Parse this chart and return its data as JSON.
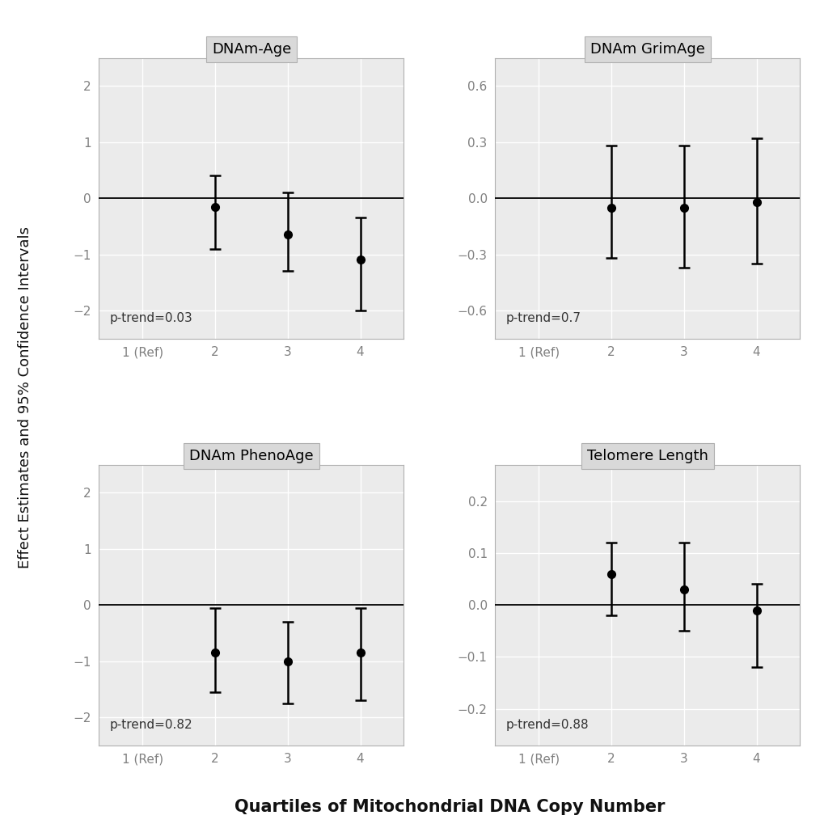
{
  "panels": [
    {
      "title": "DNAm-Age",
      "ylim": [
        -2.5,
        2.5
      ],
      "yticks": [
        -2,
        -1,
        0,
        1,
        2
      ],
      "p_trend": "p-trend=0.03",
      "estimates": [
        null,
        -0.15,
        -0.65,
        -1.1
      ],
      "ci_lower": [
        null,
        -0.9,
        -1.3,
        -2.0
      ],
      "ci_upper": [
        null,
        0.4,
        0.1,
        -0.35
      ]
    },
    {
      "title": "DNAm GrimAge",
      "ylim": [
        -0.75,
        0.75
      ],
      "yticks": [
        -0.6,
        -0.3,
        0.0,
        0.3,
        0.6
      ],
      "p_trend": "p-trend=0.7",
      "estimates": [
        null,
        -0.05,
        -0.05,
        -0.02
      ],
      "ci_lower": [
        null,
        -0.32,
        -0.37,
        -0.35
      ],
      "ci_upper": [
        null,
        0.28,
        0.28,
        0.32
      ]
    },
    {
      "title": "DNAm PhenoAge",
      "ylim": [
        -2.5,
        2.5
      ],
      "yticks": [
        -2,
        -1,
        0,
        1,
        2
      ],
      "p_trend": "p-trend=0.82",
      "estimates": [
        null,
        -0.85,
        -1.0,
        -0.85
      ],
      "ci_lower": [
        null,
        -1.55,
        -1.75,
        -1.7
      ],
      "ci_upper": [
        null,
        -0.05,
        -0.3,
        -0.05
      ]
    },
    {
      "title": "Telomere Length",
      "ylim": [
        -0.27,
        0.27
      ],
      "yticks": [
        -0.2,
        -0.1,
        0.0,
        0.1,
        0.2
      ],
      "p_trend": "p-trend=0.88",
      "estimates": [
        null,
        0.06,
        0.03,
        -0.01
      ],
      "ci_lower": [
        null,
        -0.02,
        -0.05,
        -0.12
      ],
      "ci_upper": [
        null,
        0.12,
        0.12,
        0.04
      ]
    }
  ],
  "x_positions": [
    1,
    2,
    3,
    4
  ],
  "x_ticklabels": [
    "1 (Ref)",
    "2",
    "3",
    "4"
  ],
  "xlabel": "Quartiles of Mitochondrial DNA Copy Number",
  "ylabel": "Effect Estimates and 95% Confidence Intervals",
  "background_color": "#ffffff",
  "panel_bg_color": "#ebebeb",
  "title_bg_color": "#d9d9d9",
  "grid_color": "#ffffff",
  "zero_line_color": "#000000",
  "point_color": "#000000",
  "ci_color": "#000000",
  "tick_color": "#808080",
  "spine_color": "#b0b0b0",
  "point_size": 7,
  "capsize": 5,
  "linewidth": 1.8,
  "title_fontsize": 13,
  "tick_fontsize": 11,
  "label_fontsize": 13,
  "xlabel_fontsize": 15,
  "ptrend_fontsize": 11
}
